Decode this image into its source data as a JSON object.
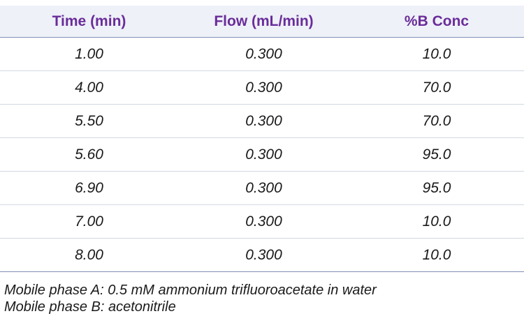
{
  "table": {
    "headers": [
      "Time (min)",
      "Flow (mL/min)",
      "%B Conc"
    ],
    "rows": [
      [
        "1.00",
        "0.300",
        "10.0"
      ],
      [
        "4.00",
        "0.300",
        "70.0"
      ],
      [
        "5.50",
        "0.300",
        "70.0"
      ],
      [
        "5.60",
        "0.300",
        "95.0"
      ],
      [
        "6.90",
        "0.300",
        "95.0"
      ],
      [
        "7.00",
        "0.300",
        "10.0"
      ],
      [
        "8.00",
        "0.300",
        "10.0"
      ]
    ]
  },
  "notes": {
    "mobile_phase_a": "Mobile phase A: 0.5 mM ammonium trifluoroacetate in water",
    "mobile_phase_b": "Mobile phase B: acetonitrile"
  },
  "colors": {
    "header_text": "#6a2c9a",
    "header_background": "#eef1f8",
    "rule": "#7f8fb7"
  }
}
